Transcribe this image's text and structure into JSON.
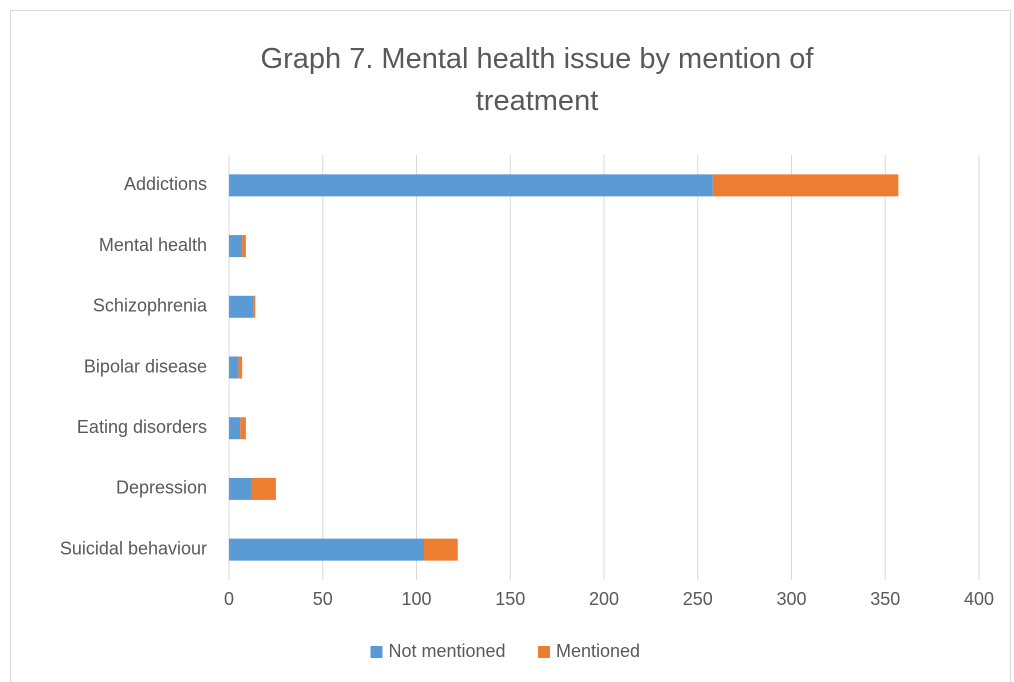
{
  "chart_data": {
    "type": "stacked_bar_horizontal",
    "title": "Graph 7. Mental health issue by mention of treatment",
    "categories": [
      "Addictions",
      "Mental health",
      "Schizophrenia",
      "Bipolar disease",
      "Eating disorders",
      "Depression",
      "Suicidal behaviour"
    ],
    "series": [
      {
        "name": "Not mentioned",
        "color": "#5b9bd5",
        "values": [
          258,
          7,
          13,
          5,
          6,
          12,
          104
        ]
      },
      {
        "name": "Mentioned",
        "color": "#ed7d31",
        "values": [
          99,
          2,
          1,
          2,
          3,
          13,
          18
        ]
      }
    ],
    "xlim": [
      0,
      400
    ],
    "xticks": [
      0,
      50,
      100,
      150,
      200,
      250,
      300,
      350,
      400
    ],
    "grid": true,
    "legend": "bottom"
  }
}
